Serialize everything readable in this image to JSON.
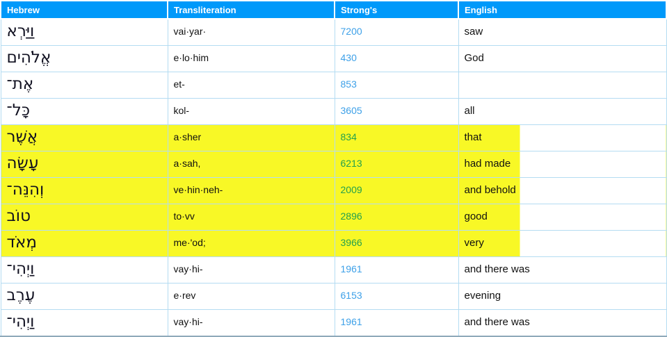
{
  "table": {
    "columns": [
      {
        "label": "Hebrew"
      },
      {
        "label": "Transliteration"
      },
      {
        "label": "Strong's"
      },
      {
        "label": "English"
      }
    ],
    "rows": [
      {
        "hebrew": "וַיַּרְא",
        "translit": "vai·yar·",
        "strongs": "7200",
        "english": "saw",
        "highlighted": false
      },
      {
        "hebrew": "אֱלֹהִים",
        "translit": "e·lo·him",
        "strongs": "430",
        "english": "God",
        "highlighted": false
      },
      {
        "hebrew": "אֶת־",
        "translit": "et-",
        "strongs": "853",
        "english": "",
        "highlighted": false
      },
      {
        "hebrew": "כָּל־",
        "translit": "kol-",
        "strongs": "3605",
        "english": "all",
        "highlighted": false
      },
      {
        "hebrew": "אֲשֶׁר",
        "translit": "a·sher",
        "strongs": "834",
        "english": "that",
        "highlighted": true
      },
      {
        "hebrew": "עָשָׂה",
        "translit": "a·sah,",
        "strongs": "6213",
        "english": "had made",
        "highlighted": true
      },
      {
        "hebrew": "וְהִנֵּה־",
        "translit": "ve·hin·neh-",
        "strongs": "2009",
        "english": "and behold",
        "highlighted": true
      },
      {
        "hebrew": "טוֹב",
        "translit": "to·vv",
        "strongs": "2896",
        "english": "good",
        "highlighted": true
      },
      {
        "hebrew": "מְאֹד",
        "translit": "me·'od;",
        "strongs": "3966",
        "english": "very",
        "highlighted": true
      },
      {
        "hebrew": "וַיְהִי־",
        "translit": "vay·hi-",
        "strongs": "1961",
        "english": "and there was",
        "highlighted": false
      },
      {
        "hebrew": "עֶרֶב",
        "translit": "e·rev",
        "strongs": "6153",
        "english": "evening",
        "highlighted": false
      },
      {
        "hebrew": "וַיְהִי־",
        "translit": "vay·hi-",
        "strongs": "1961",
        "english": "and there was",
        "highlighted": false
      }
    ]
  },
  "colors": {
    "header_bg": "#0099fa",
    "cell_border": "#b4dcf2",
    "highlight": "#f8f826",
    "link_blue": "#3da0e8",
    "link_green": "#23a04e",
    "text": "#141414",
    "bottom_line": "#8fa9ba"
  }
}
